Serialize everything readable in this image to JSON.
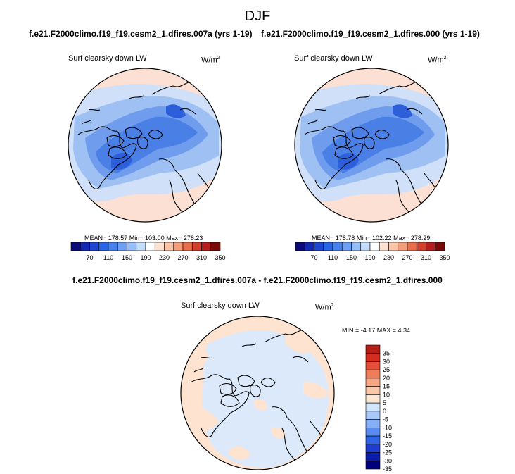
{
  "page": {
    "season": "DJF",
    "left_case": "f.e21.F2000climo.f19_f19.cesm2_1.dfires.007a (yrs 1-19)",
    "right_case": "f.e21.F2000climo.f19_f19.cesm2_1.dfires.000 (yrs 1-19)",
    "diff_title": "f.e21.F2000climo.f19_f19.cesm2_1.dfires.007a - f.e21.F2000climo.f19_f19.cesm2_1.dfires.000"
  },
  "panels": {
    "left": {
      "variable": "Surf clearsky down LW",
      "units_base": "W/m",
      "units_exp": "2",
      "stats": "MEAN= 178.57  Min= 103.00  Max= 278.23"
    },
    "right": {
      "variable": "Surf clearsky down LW",
      "units_base": "W/m",
      "units_exp": "2",
      "stats": "MEAN= 178.78  Min= 102.22  Max= 278.29"
    },
    "diff": {
      "variable": "Surf clearsky down LW",
      "units_base": "W/m",
      "units_exp": "2",
      "stats": "MIN = -4.17 MAX =  4.34"
    }
  },
  "colorbars": {
    "field": {
      "colors": [
        "#0a0a78",
        "#1428b4",
        "#1e46d2",
        "#2864e6",
        "#4682f0",
        "#6ea0f5",
        "#96bef8",
        "#c3dcfa",
        "#ffffff",
        "#fde2d2",
        "#fbc4a8",
        "#f59c78",
        "#eb6e4b",
        "#d2412d",
        "#b41e1e",
        "#780a0a"
      ],
      "tick_labels": [
        "70",
        "110",
        "150",
        "190",
        "230",
        "270",
        "310",
        "350"
      ]
    },
    "diff": {
      "colors": [
        "#00007d",
        "#0a1eaa",
        "#1e3cd2",
        "#3264e6",
        "#5a8cf0",
        "#87aff5",
        "#aac8f8",
        "#d2e6fb",
        "#fde6d2",
        "#fbc8aa",
        "#f7a582",
        "#f07d5a",
        "#e6503a",
        "#d22d1e",
        "#b41e14"
      ],
      "tick_labels": [
        "35",
        "30",
        "25",
        "20",
        "15",
        "10",
        "5",
        "0",
        "-5",
        "-10",
        "-15",
        "-20",
        "-25",
        "-30",
        "-35"
      ]
    }
  },
  "map_data": {
    "projection": "north polar stereographic",
    "field_palette": {
      "ocean_far": "#fbe0d3",
      "ring": "#cfe0f8",
      "mid": "#9fc0f3",
      "inner": "#6f9ced",
      "core": "#4a7fe6",
      "min": "#2c5fd9"
    },
    "diff_palette": {
      "positive": "#fde3d0",
      "negative": "#dce9fb"
    }
  }
}
